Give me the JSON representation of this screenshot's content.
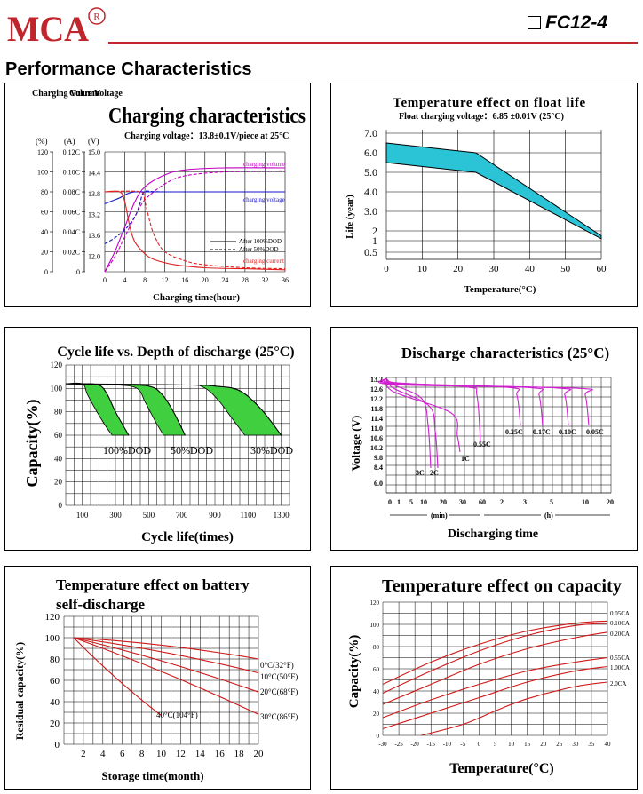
{
  "brand": {
    "logo_text": "MCA",
    "registered": "®"
  },
  "model": "FC12-4",
  "section_title": "Performance Characteristics",
  "charts": {
    "charging": {
      "title": "Charging characteristics",
      "subtitle": "Charging voltage：13.8±0.1V/piece at 25°C",
      "axis_headers": {
        "volume": "Charging Volume",
        "current": "Current",
        "voltage": "Voltage"
      },
      "units": {
        "volume": "(%)",
        "current": "(A)",
        "voltage": "(V)"
      },
      "volume_ticks": [
        "120",
        "100",
        "80",
        "60",
        "40",
        "20",
        "0"
      ],
      "current_ticks": [
        "0.12C",
        "0.10C",
        "0.08C",
        "0.06C",
        "0.04C",
        "0.02C",
        "0"
      ],
      "voltage_ticks": [
        "15.0",
        "14.4",
        "13.8",
        "13.2",
        "13.6",
        "12.0"
      ],
      "xlabel": "Charging time(hour)",
      "series_labels": {
        "volume": "charging volume",
        "voltage": "charging voltage",
        "current": "charging current"
      },
      "legend": [
        "After 100%DOD",
        "After 50%DOD"
      ],
      "colors": {
        "volume": "#c000c0",
        "voltage": "#1515c8",
        "current": "#e02020",
        "grid": "#000000"
      }
    },
    "float_life": {
      "title": "Temperature effect on float life",
      "subtitle": "Float charging voltage：6.85 ±0.01V (25°C)",
      "ylabel": "Life (year)",
      "xlabel": "Temperature(°C)",
      "y_ticks": [
        "7.0",
        "6.0",
        "5.0",
        "4.0",
        "3.0",
        "2",
        "1",
        "0.5"
      ],
      "fill_color": "#2bc4d6"
    },
    "cycle_life": {
      "title": "Cycle life vs. Depth of discharge (25°C)",
      "ylabel": "Capacity(%)",
      "xlabel": "Cycle life(times)",
      "band_labels": [
        "100%DOD",
        "50%DOD",
        "30%DOD"
      ],
      "fill_color": "#3fcf3f"
    },
    "discharge": {
      "title": "Discharge characteristics (25°C)",
      "ylabel": "Voltage (V)",
      "xlabel": "Discharging time",
      "y_ticks": [
        "13.2",
        "12.6",
        "12.2",
        "11.8",
        "11.4",
        "11.0",
        "10.6",
        "10.2",
        "9.8",
        "8.4",
        "6.0"
      ],
      "x_ticks": [
        "0",
        "1",
        "5",
        "10",
        "20",
        "30",
        "60",
        "2",
        "3",
        "5",
        "10",
        "20"
      ],
      "unit_min": "(min)",
      "unit_h": "(h)",
      "rate_labels": [
        "3C",
        "2C",
        "1C",
        "0.55C",
        "0.25C",
        "0.17C",
        "0.10C",
        "0.05C"
      ],
      "color": "#d020d0"
    },
    "self_discharge": {
      "title_line1": "Temperature effect on battery",
      "title_line2": "self-discharge",
      "ylabel": "Residual capacity(%)",
      "xlabel": "Storage time(month)",
      "series_labels": [
        "0°C(32°F)",
        "10°C(50°F)",
        "20°C(68°F)",
        "30°C(86°F)",
        "40°C(104°F)"
      ],
      "color": "#d01818"
    },
    "temp_capacity": {
      "title": "Temperature effect on capacity",
      "ylabel": "Capacity(%)",
      "xlabel": "Temperature(°C)",
      "series_labels": [
        "0.05CA",
        "0.10CA",
        "0.20CA",
        "0.55CA",
        "1.00CA",
        "2.0CA"
      ],
      "color": "#d01818"
    }
  },
  "chart_data": [
    {
      "type": "line",
      "title": "Charging characteristics",
      "xlabel": "Charging time(hour)",
      "x_ticks": [
        0,
        4,
        8,
        12,
        16,
        20,
        24,
        28,
        32,
        36
      ],
      "xlim": [
        0,
        36
      ],
      "ylim_volume": [
        0,
        120
      ],
      "ylim_current": [
        0,
        0.12
      ],
      "series": [
        {
          "name": "charging volume",
          "axis": "volume",
          "x": [
            0,
            2,
            4,
            6,
            8,
            12,
            16,
            24,
            36
          ],
          "values": [
            0,
            20,
            45,
            70,
            85,
            97,
            102,
            104,
            104
          ]
        },
        {
          "name": "charging volume",
          "axis": "volume",
          "x": [
            0,
            2,
            4,
            6,
            8,
            12,
            16,
            24,
            36
          ],
          "values": [
            0,
            15,
            35,
            55,
            72,
            88,
            96,
            100,
            101
          ]
        },
        {
          "name": "charging voltage",
          "axis": "current",
          "x": [
            0,
            1,
            2,
            3,
            4,
            5,
            6,
            8,
            12,
            36
          ],
          "values": [
            0.068,
            0.07,
            0.072,
            0.074,
            0.077,
            0.079,
            0.08,
            0.08,
            0.08,
            0.08
          ]
        },
        {
          "name": "charging voltage",
          "axis": "current",
          "x": [
            0,
            2,
            4,
            6,
            7,
            8,
            12,
            36
          ],
          "values": [
            0.028,
            0.034,
            0.042,
            0.055,
            0.068,
            0.08,
            0.08,
            0.08
          ]
        },
        {
          "name": "charging current",
          "axis": "current",
          "x": [
            0,
            3,
            4,
            5,
            6,
            8,
            10,
            14,
            20,
            28,
            36
          ],
          "values": [
            0.08,
            0.08,
            0.07,
            0.045,
            0.03,
            0.018,
            0.012,
            0.007,
            0.004,
            0.003,
            0.002
          ]
        },
        {
          "name": "charging current",
          "axis": "current",
          "x": [
            0,
            7,
            8,
            9,
            10,
            12,
            16,
            20,
            28,
            36
          ],
          "values": [
            0.08,
            0.08,
            0.07,
            0.05,
            0.035,
            0.02,
            0.011,
            0.007,
            0.004,
            0.003
          ]
        }
      ]
    },
    {
      "type": "area",
      "title": "Temperature effect on float life",
      "xlabel": "Temperature(°C)",
      "ylabel": "Life (year)",
      "x_ticks": [
        0,
        10,
        20,
        30,
        40,
        50,
        60
      ],
      "xlim": [
        0,
        60
      ],
      "ylim": [
        0,
        7.5
      ],
      "series": [
        {
          "name": "upper",
          "x": [
            0,
            25,
            60
          ],
          "values": [
            6.5,
            6.0,
            1.5
          ]
        },
        {
          "name": "lower",
          "x": [
            0,
            25,
            60
          ],
          "values": [
            5.5,
            5.0,
            1.2
          ]
        }
      ]
    },
    {
      "type": "area",
      "title": "Cycle life vs. Depth of discharge (25°C)",
      "xlabel": "Cycle life(times)",
      "ylabel": "Capacity(%)",
      "x_ticks": [
        100,
        300,
        500,
        700,
        900,
        1100,
        1300
      ],
      "y_ticks": [
        0,
        20,
        40,
        60,
        80,
        100,
        120
      ],
      "xlim": [
        0,
        1350
      ],
      "ylim": [
        0,
        120
      ],
      "series": [
        {
          "name": "100%DOD",
          "upper_x": [
            0,
            100,
            200,
            250,
            300,
            380
          ],
          "upper": [
            104,
            104,
            103,
            95,
            80,
            60
          ],
          "lower_x": [
            0,
            100,
            130,
            180,
            240,
            280
          ],
          "lower": [
            104,
            104,
            95,
            82,
            68,
            60
          ]
        },
        {
          "name": "50%DOD",
          "upper_x": [
            0,
            300,
            500,
            580,
            650,
            720
          ],
          "upper": [
            104,
            103,
            102,
            95,
            80,
            60
          ],
          "lower_x": [
            0,
            300,
            430,
            480,
            540,
            590
          ],
          "lower": [
            104,
            103,
            100,
            88,
            72,
            60
          ]
        },
        {
          "name": "30%DOD",
          "upper_x": [
            0,
            700,
            900,
            1050,
            1180,
            1300
          ],
          "upper": [
            104,
            103,
            102,
            98,
            82,
            60
          ],
          "lower_x": [
            0,
            700,
            830,
            920,
            1000,
            1080
          ],
          "lower": [
            104,
            103,
            101,
            90,
            75,
            60
          ]
        }
      ]
    },
    {
      "type": "line",
      "title": "Discharge characteristics (25°C)",
      "xlabel": "Discharging time",
      "ylabel": "Voltage (V)",
      "series": [
        {
          "name": "3C",
          "end_minutes": 8,
          "end_voltage": 6.6
        },
        {
          "name": "2C",
          "end_minutes": 13,
          "end_voltage": 7.2
        },
        {
          "name": "1C",
          "end_minutes": 28,
          "end_voltage": 9.6
        },
        {
          "name": "0.55C",
          "end_minutes": 60,
          "end_voltage": 10.2
        },
        {
          "name": "0.25C",
          "end_hours": 2.5,
          "end_voltage": 10.8
        },
        {
          "name": "0.17C",
          "end_hours": 4,
          "end_voltage": 10.8
        },
        {
          "name": "0.10C",
          "end_hours": 8,
          "end_voltage": 10.8
        },
        {
          "name": "0.05C",
          "end_hours": 20,
          "end_voltage": 10.8
        }
      ]
    },
    {
      "type": "line",
      "title": "Temperature effect on battery self-discharge",
      "xlabel": "Storage time(month)",
      "ylabel": "Residual capacity(%)",
      "x_ticks": [
        2,
        4,
        6,
        8,
        10,
        12,
        14,
        16,
        18,
        20
      ],
      "y_ticks": [
        0,
        20,
        40,
        60,
        80,
        100,
        120
      ],
      "xlim": [
        0,
        20
      ],
      "ylim": [
        0,
        120
      ],
      "series": [
        {
          "name": "0°C(32°F)",
          "x": [
            1,
            20
          ],
          "values": [
            100,
            80
          ]
        },
        {
          "name": "10°C(50°F)",
          "x": [
            1,
            20
          ],
          "values": [
            100,
            67
          ]
        },
        {
          "name": "20°C(68°F)",
          "x": [
            1,
            20
          ],
          "values": [
            100,
            49
          ]
        },
        {
          "name": "30°C(86°F)",
          "x": [
            1,
            20
          ],
          "values": [
            100,
            28
          ]
        },
        {
          "name": "40°C(104°F)",
          "x": [
            1,
            10
          ],
          "values": [
            100,
            27
          ]
        }
      ]
    },
    {
      "type": "line",
      "title": "Temperature effect on capacity",
      "xlabel": "Temperature(°C)",
      "ylabel": "Capacity(%)",
      "x_ticks": [
        -30,
        -25,
        -20,
        -15,
        -10,
        -5,
        0,
        5,
        10,
        15,
        20,
        25,
        30,
        35,
        40
      ],
      "y_ticks": [
        0,
        20,
        40,
        60,
        80,
        100,
        120
      ],
      "xlim": [
        -30,
        40
      ],
      "ylim": [
        0,
        120
      ],
      "series": [
        {
          "name": "0.05CA",
          "x": [
            -30,
            -15,
            0,
            15,
            30,
            40
          ],
          "values": [
            46,
            66,
            82,
            94,
            101,
            103
          ]
        },
        {
          "name": "0.10CA",
          "x": [
            -30,
            -15,
            0,
            15,
            30,
            40
          ],
          "values": [
            38,
            58,
            76,
            90,
            99,
            101
          ]
        },
        {
          "name": "0.20CA",
          "x": [
            -30,
            -15,
            0,
            15,
            30,
            40
          ],
          "values": [
            28,
            46,
            64,
            78,
            88,
            93
          ]
        },
        {
          "name": "0.55CA",
          "x": [
            -30,
            -15,
            0,
            15,
            30,
            40
          ],
          "values": [
            16,
            32,
            46,
            58,
            66,
            70
          ]
        },
        {
          "name": "1.00CA",
          "x": [
            -30,
            -15,
            0,
            15,
            30,
            40
          ],
          "values": [
            6,
            20,
            34,
            48,
            58,
            62
          ]
        },
        {
          "name": "2.0CA",
          "x": [
            -18,
            -5,
            5,
            15,
            30,
            40
          ],
          "values": [
            0,
            10,
            22,
            33,
            44,
            48
          ]
        }
      ]
    }
  ]
}
